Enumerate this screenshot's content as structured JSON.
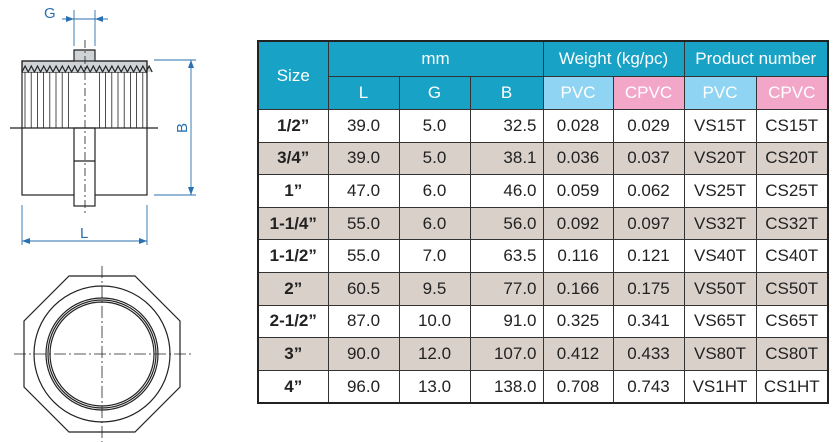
{
  "drawing": {
    "label_g": "G",
    "label_b": "B",
    "label_l": "L"
  },
  "table": {
    "size": "Size",
    "mm": "mm",
    "weight": "Weight (kg/pc)",
    "product": "Product number",
    "sub": [
      "L",
      "G",
      "B",
      "PVC",
      "CPVC",
      "PVC",
      "CPVC"
    ],
    "colors": {
      "header": "#17a2c6",
      "pvc": "#8fd4f3",
      "cpvc": "#f2a7c9",
      "alt_row": "#d9d0c9"
    },
    "rows": [
      [
        "1/2”",
        "39.0",
        "5.0",
        "32.5",
        "0.028",
        "0.029",
        "VS15T",
        "CS15T"
      ],
      [
        "3/4”",
        "39.0",
        "5.0",
        "38.1",
        "0.036",
        "0.037",
        "VS20T",
        "CS20T"
      ],
      [
        "1”",
        "47.0",
        "6.0",
        "46.0",
        "0.059",
        "0.062",
        "VS25T",
        "CS25T"
      ],
      [
        "1-1/4”",
        "55.0",
        "6.0",
        "56.0",
        "0.092",
        "0.097",
        "VS32T",
        "CS32T"
      ],
      [
        "1-1/2”",
        "55.0",
        "7.0",
        "63.5",
        "0.116",
        "0.121",
        "VS40T",
        "CS40T"
      ],
      [
        "2”",
        "60.5",
        "9.5",
        "77.0",
        "0.166",
        "0.175",
        "VS50T",
        "CS50T"
      ],
      [
        "2-1/2”",
        "87.0",
        "10.0",
        "91.0",
        "0.325",
        "0.341",
        "VS65T",
        "CS65T"
      ],
      [
        "3”",
        "90.0",
        "12.0",
        "107.0",
        "0.412",
        "0.433",
        "VS80T",
        "CS80T"
      ],
      [
        "4”",
        "96.0",
        "13.0",
        "138.0",
        "0.708",
        "0.743",
        "VS1HT",
        "CS1HT"
      ]
    ]
  }
}
